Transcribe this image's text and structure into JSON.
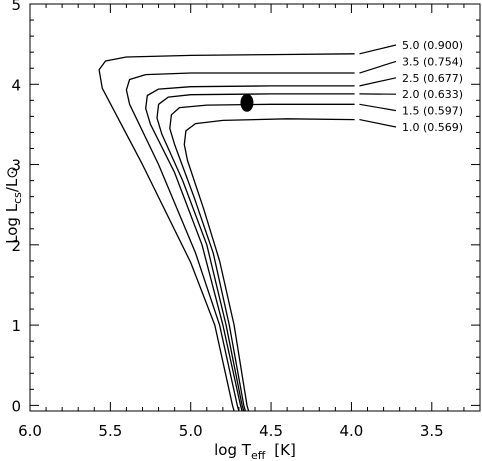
{
  "chart_data": {
    "type": "line",
    "xlabel": {
      "prefix": "log T",
      "sub": "eff",
      "unit": "[K]"
    },
    "ylabel": {
      "prefix": "Log L",
      "sub": "cs",
      "suffix": "/L⊙"
    },
    "xlim": [
      6.0,
      3.2
    ],
    "ylim": [
      -0.07,
      5.0
    ],
    "x_ticks": [
      "6.0",
      "5.5",
      "5.0",
      "4.5",
      "4.0",
      "3.5"
    ],
    "y_ticks": [
      "0",
      "1",
      "2",
      "3",
      "4",
      "5"
    ],
    "marker": {
      "x": 4.65,
      "y": 3.77
    },
    "series": [
      {
        "name": "5.0 (0.900)",
        "label_anchor": {
          "x": 3.95,
          "y": 4.38
        },
        "points": [
          [
            3.98,
            4.38
          ],
          [
            4.5,
            4.37
          ],
          [
            5.0,
            4.36
          ],
          [
            5.4,
            4.34
          ],
          [
            5.53,
            4.29
          ],
          [
            5.57,
            4.18
          ],
          [
            5.55,
            3.95
          ],
          [
            5.3,
            3.0
          ],
          [
            5.0,
            1.78
          ],
          [
            4.85,
            1.0
          ],
          [
            4.74,
            0.0
          ],
          [
            4.73,
            -0.07
          ]
        ]
      },
      {
        "name": "3.5 (0.754)",
        "label_anchor": {
          "x": 3.95,
          "y": 4.14
        },
        "points": [
          [
            3.98,
            4.14
          ],
          [
            4.5,
            4.14
          ],
          [
            5.0,
            4.14
          ],
          [
            5.28,
            4.12
          ],
          [
            5.38,
            4.06
          ],
          [
            5.4,
            3.93
          ],
          [
            5.38,
            3.75
          ],
          [
            5.2,
            3.0
          ],
          [
            4.97,
            1.9
          ],
          [
            4.82,
            1.0
          ],
          [
            4.71,
            0.0
          ],
          [
            4.7,
            -0.07
          ]
        ]
      },
      {
        "name": "2.5 (0.677)",
        "label_anchor": {
          "x": 3.95,
          "y": 3.98
        },
        "points": [
          [
            3.98,
            3.98
          ],
          [
            4.5,
            3.98
          ],
          [
            5.0,
            3.97
          ],
          [
            5.2,
            3.94
          ],
          [
            5.27,
            3.86
          ],
          [
            5.28,
            3.7
          ],
          [
            5.25,
            3.5
          ],
          [
            5.1,
            2.9
          ],
          [
            4.93,
            2.0
          ],
          [
            4.8,
            1.0
          ],
          [
            4.69,
            0.0
          ],
          [
            4.68,
            -0.07
          ]
        ]
      },
      {
        "name": "2.0 (0.633)",
        "label_anchor": {
          "x": 3.95,
          "y": 3.88
        },
        "points": [
          [
            3.98,
            3.88
          ],
          [
            4.5,
            3.88
          ],
          [
            5.0,
            3.87
          ],
          [
            5.14,
            3.84
          ],
          [
            5.2,
            3.75
          ],
          [
            5.21,
            3.58
          ],
          [
            5.18,
            3.38
          ],
          [
            5.05,
            2.8
          ],
          [
            4.9,
            2.0
          ],
          [
            4.78,
            1.0
          ],
          [
            4.68,
            0.0
          ],
          [
            4.67,
            -0.07
          ]
        ]
      },
      {
        "name": "1.5 (0.597)",
        "label_anchor": {
          "x": 3.95,
          "y": 3.75
        },
        "points": [
          [
            3.98,
            3.75
          ],
          [
            4.5,
            3.75
          ],
          [
            4.9,
            3.74
          ],
          [
            5.07,
            3.71
          ],
          [
            5.12,
            3.62
          ],
          [
            5.13,
            3.45
          ],
          [
            5.1,
            3.25
          ],
          [
            4.98,
            2.6
          ],
          [
            4.86,
            1.9
          ],
          [
            4.76,
            1.0
          ],
          [
            4.67,
            0.0
          ],
          [
            4.66,
            -0.07
          ]
        ]
      },
      {
        "name": "1.0 (0.569)",
        "label_anchor": {
          "x": 3.95,
          "y": 3.56
        },
        "points": [
          [
            3.98,
            3.56
          ],
          [
            4.4,
            3.57
          ],
          [
            4.8,
            3.55
          ],
          [
            4.97,
            3.51
          ],
          [
            5.03,
            3.42
          ],
          [
            5.04,
            3.25
          ],
          [
            5.02,
            3.05
          ],
          [
            4.92,
            2.45
          ],
          [
            4.82,
            1.8
          ],
          [
            4.73,
            1.0
          ],
          [
            4.65,
            0.0
          ],
          [
            4.64,
            -0.07
          ]
        ]
      }
    ]
  }
}
